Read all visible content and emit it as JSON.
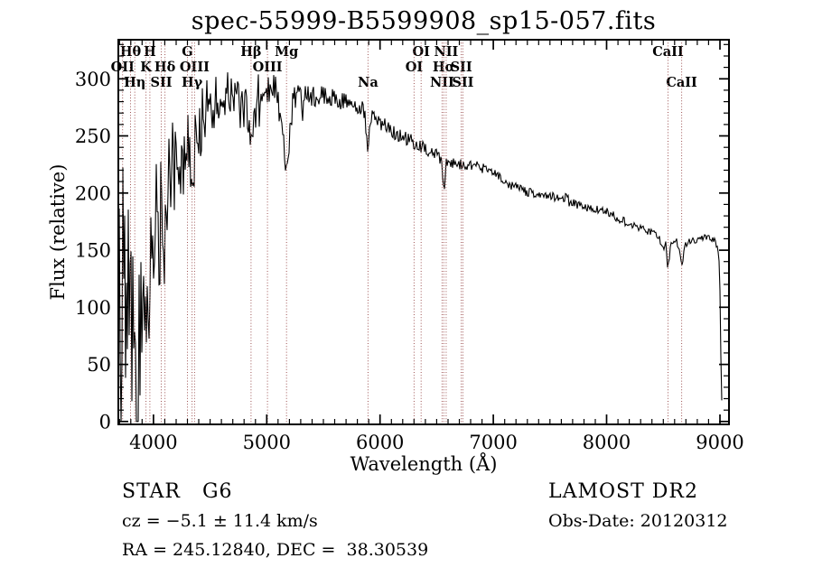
{
  "title": "spec-55999-B5599908_sp15-057.fits",
  "footer": {
    "class_label": "STAR   G6",
    "cz": "cz = −5.1 ± 11.4 km/s",
    "radec": "RA = 245.12840, DEC =  38.30539",
    "survey": "LAMOST DR2",
    "obs_date": "Obs-Date: 20120312"
  },
  "chart_data": {
    "type": "line",
    "title": "spec-55999-B5599908_sp15-057.fits",
    "xlabel": "Wavelength (Å)",
    "ylabel": "Flux (relative)",
    "xlim": [
      3690,
      9080
    ],
    "ylim": [
      -2.5,
      334.2
    ],
    "xticks": [
      4000,
      5000,
      6000,
      7000,
      8000,
      9000
    ],
    "yticks": [
      0,
      50,
      100,
      150,
      200,
      250,
      300
    ],
    "x_minor_step": 100,
    "y_minor_step": 10,
    "grid": false,
    "legend": false,
    "line_color": "#000000",
    "marker_line_color": "#9e5454",
    "spectral_lines": [
      {
        "label": "Hθ",
        "wl": 3798.0,
        "row": 1
      },
      {
        "label": "H",
        "wl": 3968.5,
        "row": 1
      },
      {
        "label": "G",
        "wl": 4300.0,
        "row": 1
      },
      {
        "label": "Hβ",
        "wl": 4861.3,
        "row": 1
      },
      {
        "label": "Mg",
        "wl": 5175.0,
        "row": 1
      },
      {
        "label": "OI",
        "wl": 6363.0,
        "row": 1
      },
      {
        "label": "NII",
        "wl": 6583.4,
        "row": 1
      },
      {
        "label": "CaII",
        "wl": 8542.1,
        "row": 1
      },
      {
        "label": "OII",
        "wl": 3727.1,
        "row": 2
      },
      {
        "label": "K",
        "wl": 3933.7,
        "row": 2
      },
      {
        "label": "Hδ",
        "wl": 4101.7,
        "row": 2
      },
      {
        "label": "OIII",
        "wl": 4363.2,
        "row": 2
      },
      {
        "label": "OIII",
        "wl": 5006.8,
        "row": 2
      },
      {
        "label": "OI",
        "wl": 6300.3,
        "row": 2
      },
      {
        "label": "Hα",
        "wl": 6562.8,
        "row": 2
      },
      {
        "label": "SII",
        "wl": 6716.4,
        "row": 2
      },
      {
        "label": "Hη",
        "wl": 3835.4,
        "row": 3
      },
      {
        "label": "SII",
        "wl": 4068.6,
        "row": 3
      },
      {
        "label": "Hγ",
        "wl": 4340.5,
        "row": 3
      },
      {
        "label": "Na",
        "wl": 5894.0,
        "row": 3
      },
      {
        "label": "NII",
        "wl": 6548.0,
        "row": 3
      },
      {
        "label": "SII",
        "wl": 6730.8,
        "row": 3
      },
      {
        "label": "CaII",
        "wl": 8662.1,
        "row": 3
      }
    ],
    "envelope": [
      [
        3690,
        100
      ],
      [
        3706,
        125
      ],
      [
        3725,
        145
      ],
      [
        3745,
        120
      ],
      [
        3762,
        135
      ],
      [
        3785,
        125
      ],
      [
        3800,
        115
      ],
      [
        3820,
        85
      ],
      [
        3835,
        65
      ],
      [
        3855,
        50
      ],
      [
        3875,
        60
      ],
      [
        3895,
        95
      ],
      [
        3915,
        125
      ],
      [
        3933,
        75
      ],
      [
        3950,
        120
      ],
      [
        3968,
        105
      ],
      [
        3985,
        140
      ],
      [
        4000,
        160
      ],
      [
        4030,
        175
      ],
      [
        4060,
        190
      ],
      [
        4101,
        158
      ],
      [
        4130,
        200
      ],
      [
        4170,
        220
      ],
      [
        4210,
        228
      ],
      [
        4250,
        238
      ],
      [
        4300,
        235
      ],
      [
        4340,
        208
      ],
      [
        4375,
        248
      ],
      [
        4420,
        262
      ],
      [
        4470,
        274
      ],
      [
        4530,
        281
      ],
      [
        4600,
        286
      ],
      [
        4700,
        288
      ],
      [
        4800,
        290
      ],
      [
        4861,
        242
      ],
      [
        4910,
        289
      ],
      [
        5000,
        289
      ],
      [
        5090,
        290
      ],
      [
        5175,
        216
      ],
      [
        5230,
        284
      ],
      [
        5320,
        284
      ],
      [
        5450,
        285
      ],
      [
        5600,
        282
      ],
      [
        5750,
        278
      ],
      [
        5865,
        272
      ],
      [
        5889,
        241
      ],
      [
        5899,
        243
      ],
      [
        5910,
        267
      ],
      [
        6000,
        261
      ],
      [
        6100,
        255
      ],
      [
        6200,
        249
      ],
      [
        6300,
        244
      ],
      [
        6400,
        238
      ],
      [
        6500,
        233
      ],
      [
        6545,
        229
      ],
      [
        6563,
        199
      ],
      [
        6585,
        227
      ],
      [
        6700,
        226
      ],
      [
        6800,
        224
      ],
      [
        6900,
        222
      ],
      [
        7000,
        220
      ],
      [
        7100,
        210
      ],
      [
        7270,
        202
      ],
      [
        7420,
        199
      ],
      [
        7550,
        196
      ],
      [
        7625,
        193
      ],
      [
        7645,
        201
      ],
      [
        7665,
        192
      ],
      [
        7800,
        188
      ],
      [
        8000,
        184
      ],
      [
        8100,
        178
      ],
      [
        8200,
        173
      ],
      [
        8300,
        169
      ],
      [
        8400,
        165
      ],
      [
        8460,
        161
      ],
      [
        8498,
        150
      ],
      [
        8520,
        159
      ],
      [
        8542,
        133
      ],
      [
        8570,
        158
      ],
      [
        8620,
        159
      ],
      [
        8662,
        138
      ],
      [
        8700,
        156
      ],
      [
        8800,
        159
      ],
      [
        8900,
        162
      ],
      [
        8955,
        158
      ],
      [
        8990,
        149
      ],
      [
        9000,
        118
      ],
      [
        9008,
        58
      ],
      [
        9015,
        24
      ],
      [
        9022,
        2
      ]
    ],
    "noise_profile": [
      [
        3690,
        112
      ],
      [
        3780,
        95
      ],
      [
        3850,
        72
      ],
      [
        3950,
        62
      ],
      [
        4050,
        52
      ],
      [
        4150,
        45
      ],
      [
        4300,
        38
      ],
      [
        4450,
        26
      ],
      [
        4600,
        20
      ],
      [
        5000,
        15
      ],
      [
        5300,
        10
      ],
      [
        5700,
        8
      ],
      [
        6000,
        7
      ],
      [
        6500,
        5.5
      ],
      [
        7000,
        4.5
      ],
      [
        7600,
        4
      ],
      [
        8200,
        3.5
      ],
      [
        8800,
        3
      ],
      [
        9022,
        2
      ]
    ],
    "noise_seed": 20120312
  }
}
